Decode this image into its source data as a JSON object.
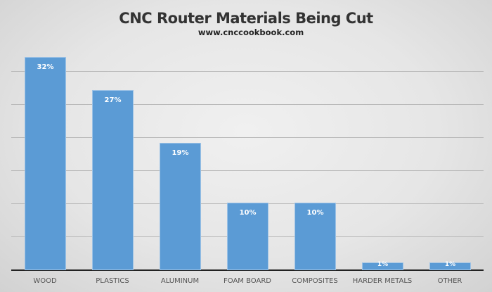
{
  "chart_data": {
    "type": "bar",
    "title": "CNC Router Materials Being Cut",
    "subtitle": "www.cnccookbook.com",
    "categories": [
      "WOOD",
      "PLASTICS",
      "ALUMINUM",
      "FOAM BOARD",
      "COMPOSITES",
      "HARDER METALS",
      "OTHER"
    ],
    "values": [
      32,
      27,
      19,
      10,
      10,
      1,
      1
    ],
    "labels": [
      "32%",
      "27%",
      "19%",
      "10%",
      "10%",
      "1%",
      "1%"
    ],
    "xlabel": "",
    "ylabel": "",
    "ylim": [
      0,
      35
    ],
    "grid": true,
    "gridline_step": 5,
    "ytick_labels_visible": false,
    "legend": "none",
    "bar_color": "#5b9bd5"
  }
}
